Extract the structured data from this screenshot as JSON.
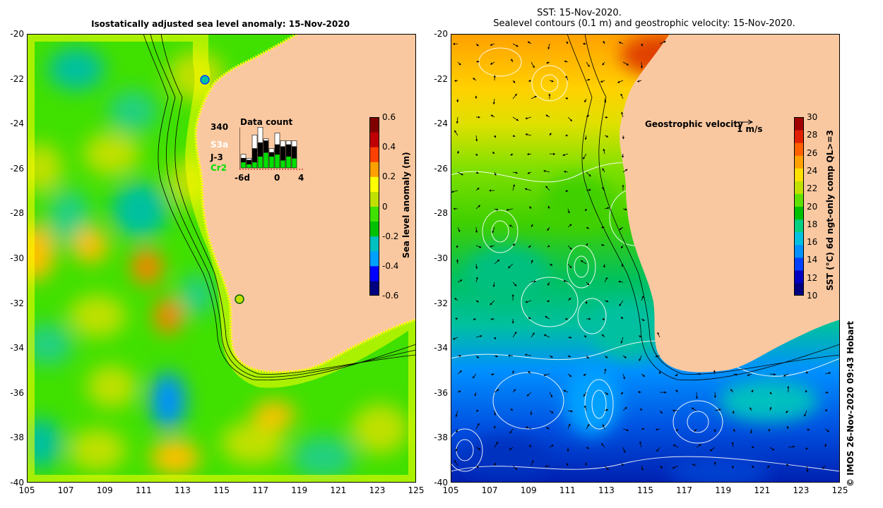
{
  "left_map": {
    "title": "Isostatically adjusted sea level anomaly: 15-Nov-2020",
    "colorbar": {
      "title": "Sea level anomaly (m)",
      "ticks": [
        "0.6",
        "0.4",
        "0.2",
        "0",
        "-0.2",
        "-0.4",
        "-0.6"
      ],
      "range": [
        -0.6,
        0.6
      ],
      "colors": [
        "#000080",
        "#0000ff",
        "#00a0ff",
        "#00c0c0",
        "#00c000",
        "#40e000",
        "#c0e000",
        "#ffff00",
        "#ffa000",
        "#ff4000",
        "#c00000",
        "#800000"
      ]
    },
    "inset": {
      "title": "Data count",
      "max_label": "340",
      "satellites": [
        {
          "name": "S3a",
          "color": "#ffffff"
        },
        {
          "name": "J-3",
          "color": "#000000"
        },
        {
          "name": "Cr2",
          "color": "#00e000"
        }
      ],
      "x_ticks": [
        "-6d",
        "0",
        "4"
      ],
      "bars": [
        {
          "day": -6,
          "S3a": 0.1,
          "J-3": 0.1,
          "Cr2": 0.15
        },
        {
          "day": -5,
          "S3a": 0.05,
          "J-3": 0.1,
          "Cr2": 0.1
        },
        {
          "day": -4,
          "S3a": 0.35,
          "J-3": 0.35,
          "Cr2": 0.15
        },
        {
          "day": -3,
          "S3a": 0.4,
          "J-3": 0.35,
          "Cr2": 0.3
        },
        {
          "day": -2,
          "S3a": 0.05,
          "J-3": 0.3,
          "Cr2": 0.4
        },
        {
          "day": -1,
          "S3a": 0.1,
          "J-3": 0.1,
          "Cr2": 0.3
        },
        {
          "day": 0,
          "S3a": 0.3,
          "J-3": 0.25,
          "Cr2": 0.35
        },
        {
          "day": 1,
          "S3a": 0.15,
          "J-3": 0.35,
          "Cr2": 0.2
        },
        {
          "day": 2,
          "S3a": 0.1,
          "J-3": 0.3,
          "Cr2": 0.3
        },
        {
          "day": 3,
          "S3a": 0.15,
          "J-3": 0.3,
          "Cr2": 0.25
        }
      ]
    }
  },
  "right_map": {
    "title_line1": "SST: 15-Nov-2020.",
    "title_line2": "Sealevel contours (0.1 m) and geostrophic velocity: 15-Nov-2020.",
    "velocity_legend": "Geostrophic velocity",
    "velocity_scale": "1 m/s",
    "colorbar": {
      "title": "SST (°C) 6d ngt-only comp QL>=3",
      "ticks": [
        "30",
        "28",
        "26",
        "24",
        "22",
        "20",
        "18",
        "16",
        "14",
        "12",
        "10"
      ],
      "range": [
        10,
        30
      ],
      "colors": [
        "#000080",
        "#0000c0",
        "#0040ff",
        "#0090ff",
        "#00c0e0",
        "#00d080",
        "#00c000",
        "#60e000",
        "#c0e000",
        "#ffe000",
        "#ffa000",
        "#ff6000",
        "#e02000",
        "#a00000"
      ]
    }
  },
  "axes": {
    "lat_ticks": [
      "-20",
      "-22",
      "-24",
      "-26",
      "-28",
      "-30",
      "-32",
      "-34",
      "-36",
      "-38",
      "-40"
    ],
    "lon_ticks": [
      "105",
      "107",
      "109",
      "111",
      "113",
      "115",
      "117",
      "119",
      "121",
      "123",
      "125"
    ],
    "lat_range": [
      -40,
      -20
    ],
    "lon_range": [
      105,
      125
    ]
  },
  "credit": "© IMOS 26-Nov-2020 09:43 Hobart",
  "colors": {
    "land": "#fac8a0",
    "coast_yellow": "#ffff00"
  }
}
